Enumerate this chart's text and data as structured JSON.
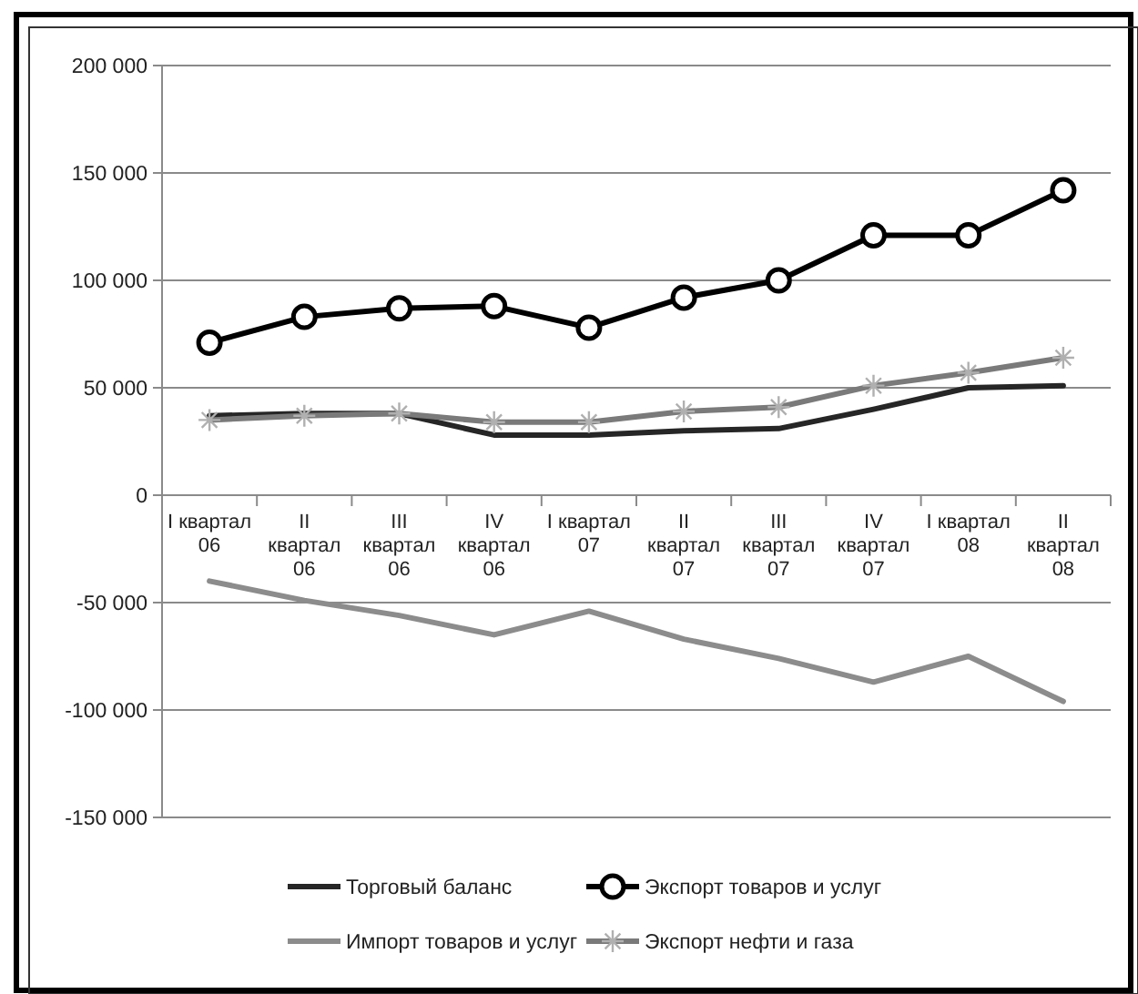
{
  "chart_data": {
    "type": "line",
    "categories": [
      "I квартал 06",
      "II квартал 06",
      "III квартал 06",
      "IV квартал 06",
      "I квартал 07",
      "II квартал 07",
      "III квартал 07",
      "IV квартал 07",
      "I квартал 08",
      "II квартал 08"
    ],
    "series": [
      {
        "name": "Торговый баланс",
        "color": "#262626",
        "marker": "none",
        "values": [
          37000,
          38000,
          38000,
          28000,
          28000,
          30000,
          31000,
          40000,
          50000,
          51000
        ]
      },
      {
        "name": "Экспорт товаров и услуг",
        "color": "#000000",
        "marker": "circle",
        "values": [
          71000,
          83000,
          87000,
          88000,
          78000,
          92000,
          100000,
          121000,
          121000,
          142000
        ]
      },
      {
        "name": "Импорт товаров и услуг",
        "color": "#8c8c8c",
        "marker": "none",
        "values": [
          -40000,
          -49000,
          -56000,
          -65000,
          -54000,
          -67000,
          -76000,
          -87000,
          -75000,
          -96000
        ]
      },
      {
        "name": "Экспорт нефти и газа",
        "color": "#7a7a7a",
        "marker": "cross",
        "values": [
          35000,
          37000,
          38000,
          34000,
          34000,
          39000,
          41000,
          51000,
          57000,
          64000
        ]
      }
    ],
    "ylim": [
      -150000,
      200000
    ],
    "yticks": [
      {
        "value": -150000,
        "label": "-150 000"
      },
      {
        "value": -100000,
        "label": "-100 000"
      },
      {
        "value": -50000,
        "label": "-50 000"
      },
      0,
      {
        "value": 50000,
        "label": "50 000"
      },
      {
        "value": 100000,
        "label": "100 000"
      },
      {
        "value": 150000,
        "label": "150 000"
      },
      {
        "value": 200000,
        "label": "200 000"
      }
    ],
    "grid": "y",
    "legend": "bottom"
  }
}
